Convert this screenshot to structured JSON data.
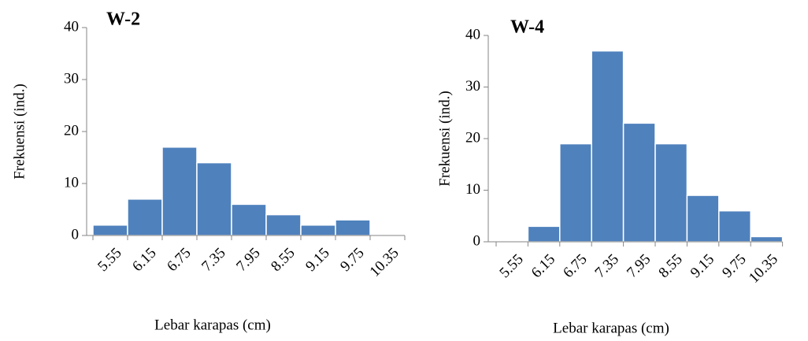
{
  "chart_data": [
    {
      "type": "bar",
      "title": "W-2",
      "xlabel": "Lebar karapas (cm)",
      "ylabel": "Frekuensi (ind.)",
      "categories": [
        "5.55",
        "6.15",
        "6.75",
        "7.35",
        "7.95",
        "8.55",
        "9.15",
        "9.75",
        "10.35"
      ],
      "values": [
        2,
        7,
        17,
        14,
        6,
        4,
        2,
        3,
        0
      ],
      "color": "#4f81bd",
      "ylim": [
        0,
        40
      ],
      "yticks": [
        0,
        10,
        20,
        30,
        40
      ]
    },
    {
      "type": "bar",
      "title": "W-4",
      "xlabel": "Lebar karapas (cm)",
      "ylabel": "Frekuensi (ind.)",
      "categories": [
        "5.55",
        "6.15",
        "6.75",
        "7.35",
        "7.95",
        "8.55",
        "9.15",
        "9.75",
        "10.35"
      ],
      "values": [
        0,
        3,
        19,
        37,
        23,
        19,
        9,
        6,
        1
      ],
      "color": "#4f81bd",
      "ylim": [
        0,
        40
      ],
      "yticks": [
        0,
        10,
        20,
        30,
        40
      ]
    }
  ]
}
